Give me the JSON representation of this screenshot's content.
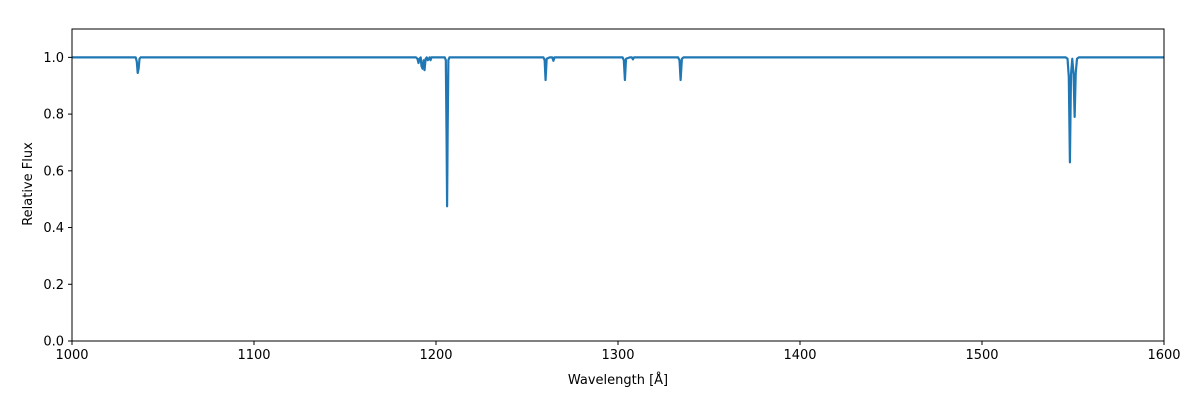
{
  "chart_data": {
    "type": "line",
    "title": "",
    "xlabel": "Wavelength [Å]",
    "ylabel": "Relative Flux",
    "xlim": [
      1000,
      1600
    ],
    "ylim": [
      0.0,
      1.1
    ],
    "x_ticks": [
      1000,
      1100,
      1200,
      1300,
      1400,
      1500,
      1600
    ],
    "x_tick_labels": [
      "1000",
      "1100",
      "1200",
      "1300",
      "1400",
      "1500",
      "1600"
    ],
    "y_ticks": [
      0.0,
      0.2,
      0.4,
      0.6,
      0.8,
      1.0
    ],
    "y_tick_labels": [
      "0.0",
      "0.2",
      "0.4",
      "0.6",
      "0.8",
      "1.0"
    ],
    "grid": false,
    "legend": "none",
    "line_color": "#1f77b4",
    "series": [
      {
        "x": [
          1000,
          1035.0,
          1035.6,
          1036.1,
          1036.6,
          1037.1,
          1037.7,
          1039.0,
          1189.0,
          1189.8,
          1190.4,
          1191.0,
          1191.6,
          1192.0,
          1192.6,
          1193.2,
          1193.7,
          1194.3,
          1194.9,
          1195.5,
          1196.5,
          1197.0,
          1197.5,
          1198.5,
          1204.8,
          1205.4,
          1205.8,
          1206.1,
          1206.4,
          1206.8,
          1207.4,
          1259.0,
          1259.7,
          1260.2,
          1260.8,
          1262.5,
          1263.9,
          1264.5,
          1265.1,
          1266.0,
          1302.5,
          1303.2,
          1303.8,
          1304.4,
          1306.5,
          1307.6,
          1308.2,
          1308.8,
          1310.0,
          1333.0,
          1333.8,
          1334.4,
          1335.1,
          1336.0,
          1546.0,
          1547.0,
          1547.7,
          1548.3,
          1548.9,
          1549.6,
          1550.3,
          1550.9,
          1551.5,
          1552.2,
          1553.2,
          1600
        ],
        "values": [
          1.0,
          1.0,
          0.985,
          0.945,
          0.96,
          0.995,
          1.0,
          1.0,
          1.0,
          0.995,
          0.98,
          0.996,
          1.0,
          0.97,
          0.96,
          0.99,
          0.955,
          0.995,
          1.0,
          0.99,
          1.0,
          0.99,
          1.0,
          1.0,
          1.0,
          0.99,
          0.72,
          0.475,
          0.74,
          0.99,
          1.0,
          1.0,
          0.99,
          0.92,
          0.995,
          1.0,
          1.0,
          0.988,
          1.0,
          1.0,
          1.0,
          0.99,
          0.92,
          0.995,
          1.0,
          1.0,
          0.993,
          1.0,
          1.0,
          1.0,
          0.99,
          0.92,
          0.995,
          1.0,
          1.0,
          0.995,
          0.93,
          0.63,
          0.94,
          0.995,
          0.94,
          0.79,
          0.945,
          0.995,
          1.0,
          1.0
        ]
      }
    ]
  }
}
